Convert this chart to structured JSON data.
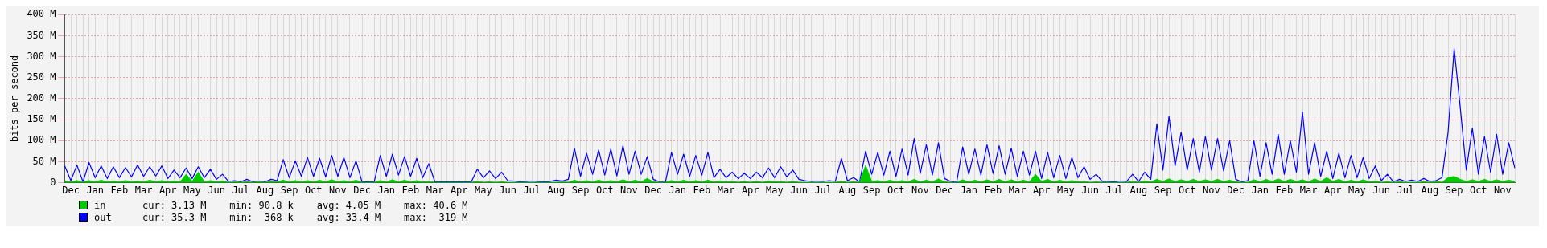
{
  "chart_data": {
    "type": "line",
    "ylabel": "bits per second",
    "categories": [
      null,
      "Dec",
      null,
      null,
      null,
      "Jan",
      null,
      null,
      null,
      "Feb",
      null,
      null,
      null,
      "Mar",
      null,
      null,
      null,
      "Apr",
      null,
      null,
      null,
      "May",
      null,
      null,
      null,
      "Jun",
      null,
      null,
      null,
      "Jul",
      null,
      null,
      null,
      "Aug",
      null,
      null,
      null,
      "Sep",
      null,
      null,
      null,
      "Oct",
      null,
      null,
      null,
      "Nov",
      null,
      null,
      null,
      "Dec",
      null,
      null,
      null,
      "Jan",
      null,
      null,
      null,
      "Feb",
      null,
      null,
      null,
      "Mar",
      null,
      null,
      null,
      "Apr",
      null,
      null,
      null,
      "May",
      null,
      null,
      null,
      "Jun",
      null,
      null,
      null,
      "Jul",
      null,
      null,
      null,
      "Aug",
      null,
      null,
      null,
      "Sep",
      null,
      null,
      null,
      "Oct",
      null,
      null,
      null,
      "Nov",
      null,
      null,
      null,
      "Dec",
      null,
      null,
      null,
      "Jan",
      null,
      null,
      null,
      "Feb",
      null,
      null,
      null,
      "Mar",
      null,
      null,
      null,
      "Apr",
      null,
      null,
      null,
      "May",
      null,
      null,
      null,
      "Jun",
      null,
      null,
      null,
      "Jul",
      null,
      null,
      null,
      "Aug",
      null,
      null,
      null,
      "Sep",
      null,
      null,
      null,
      "Oct",
      null,
      null,
      null,
      "Nov",
      null,
      null,
      null,
      "Dec",
      null,
      null,
      null,
      "Jan",
      null,
      null,
      null,
      "Feb",
      null,
      null,
      null,
      "Mar",
      null,
      null,
      null,
      "Apr",
      null,
      null,
      null,
      "May",
      null,
      null,
      null,
      "Jun",
      null,
      null,
      null,
      "Jul",
      null,
      null,
      null,
      "Aug",
      null,
      null,
      null,
      "Sep",
      null,
      null,
      null,
      "Oct",
      null,
      null,
      null,
      "Nov",
      null,
      null,
      null,
      "Dec",
      null,
      null,
      null,
      "Jan",
      null,
      null,
      null,
      "Feb",
      null,
      null,
      null,
      "Mar",
      null,
      null,
      null,
      "Apr",
      null,
      null,
      null,
      "May",
      null,
      null,
      null,
      "Jun",
      null,
      null,
      null,
      "Jul",
      null,
      null,
      null,
      "Aug",
      null,
      null,
      null,
      "Sep",
      null,
      null,
      null,
      "Oct",
      null,
      null,
      null,
      "Nov",
      null,
      null
    ],
    "series": [
      {
        "name": "in",
        "type": "area",
        "color": "#00cc00",
        "values": [
          4,
          2,
          5,
          2,
          5,
          2,
          6,
          2,
          4,
          2,
          5,
          2,
          4,
          2,
          6,
          2,
          5,
          2,
          4,
          2,
          20,
          3,
          25,
          2,
          5,
          2,
          4,
          1,
          2,
          1,
          2,
          1,
          2,
          1,
          3,
          2,
          6,
          2,
          5,
          2,
          5,
          2,
          6,
          2,
          7,
          2,
          5,
          2,
          6,
          1,
          1,
          1,
          5,
          2,
          7,
          2,
          6,
          2,
          5,
          2,
          3,
          1,
          1,
          1,
          1,
          1,
          1,
          1,
          3,
          1,
          2,
          1,
          2,
          1,
          1,
          1,
          1,
          1,
          1,
          1,
          1,
          1,
          2,
          1,
          6,
          2,
          5,
          2,
          6,
          2,
          5,
          2,
          7,
          2,
          6,
          2,
          10,
          2,
          1,
          1,
          5,
          2,
          6,
          2,
          5,
          2,
          6,
          2,
          4,
          2,
          3,
          1,
          3,
          1,
          3,
          1,
          4,
          2,
          3,
          1,
          3,
          1,
          1,
          1,
          1,
          1,
          1,
          1,
          3,
          1,
          2,
          1,
          41,
          3,
          5,
          2,
          6,
          2,
          5,
          2,
          8,
          2,
          6,
          2,
          9,
          2,
          1,
          1,
          7,
          2,
          6,
          2,
          7,
          2,
          8,
          2,
          7,
          2,
          6,
          2,
          20,
          3,
          8,
          2,
          6,
          2,
          5,
          2,
          3,
          1,
          2,
          1,
          1,
          1,
          1,
          1,
          3,
          1,
          4,
          2,
          8,
          3,
          9,
          3,
          7,
          3,
          8,
          3,
          7,
          3,
          8,
          3,
          6,
          2,
          1,
          1,
          7,
          2,
          8,
          3,
          9,
          3,
          8,
          3,
          7,
          2,
          9,
          3,
          12,
          3,
          8,
          2,
          6,
          2,
          7,
          2,
          4,
          1,
          2,
          1,
          2,
          1,
          1,
          1,
          2,
          1,
          3,
          1,
          12,
          15,
          8,
          3,
          7,
          3,
          8,
          3,
          7,
          3,
          6,
          3
        ]
      },
      {
        "name": "out",
        "type": "line",
        "color": "#0000ff",
        "values": [
          40,
          5,
          42,
          2,
          48,
          12,
          40,
          10,
          38,
          12,
          36,
          14,
          42,
          15,
          38,
          16,
          40,
          10,
          30,
          12,
          35,
          10,
          38,
          12,
          32,
          8,
          20,
          3,
          5,
          2,
          8,
          2,
          4,
          2,
          8,
          5,
          55,
          12,
          52,
          15,
          60,
          15,
          58,
          14,
          65,
          15,
          60,
          12,
          52,
          2,
          2,
          2,
          65,
          15,
          68,
          18,
          62,
          15,
          58,
          12,
          45,
          2,
          2,
          2,
          2,
          2,
          2,
          2,
          32,
          12,
          28,
          10,
          25,
          5,
          4,
          2,
          3,
          4,
          3,
          2,
          3,
          6,
          4,
          8,
          82,
          15,
          70,
          20,
          78,
          18,
          80,
          16,
          88,
          20,
          75,
          20,
          62,
          8,
          2,
          1,
          72,
          20,
          68,
          15,
          65,
          18,
          72,
          12,
          32,
          12,
          25,
          10,
          22,
          10,
          25,
          12,
          35,
          12,
          38,
          14,
          30,
          8,
          5,
          3,
          4,
          3,
          5,
          3,
          58,
          5,
          12,
          2,
          75,
          20,
          72,
          18,
          75,
          15,
          80,
          18,
          105,
          22,
          90,
          18,
          95,
          10,
          3,
          1,
          85,
          20,
          80,
          18,
          90,
          22,
          88,
          20,
          82,
          15,
          75,
          18,
          75,
          10,
          72,
          12,
          65,
          10,
          60,
          12,
          38,
          8,
          20,
          3,
          3,
          2,
          4,
          3,
          20,
          3,
          25,
          8,
          140,
          30,
          158,
          40,
          120,
          30,
          105,
          25,
          110,
          30,
          105,
          28,
          100,
          8,
          2,
          5,
          100,
          15,
          95,
          20,
          115,
          20,
          100,
          25,
          168,
          20,
          95,
          15,
          75,
          10,
          70,
          12,
          65,
          12,
          60,
          10,
          40,
          5,
          20,
          2,
          8,
          3,
          6,
          3,
          10,
          3,
          5,
          12,
          120,
          319,
          180,
          30,
          130,
          20,
          110,
          25,
          115,
          20,
          95,
          35
        ]
      }
    ],
    "ylim": [
      0,
      400
    ],
    "yticks": [
      0,
      {
        "value": 50,
        "label": "50 M"
      },
      {
        "value": 100,
        "label": "100 M"
      },
      {
        "value": 150,
        "label": "150 M"
      },
      {
        "value": 200,
        "label": "200 M"
      },
      {
        "value": 250,
        "label": "250 M"
      },
      {
        "value": 300,
        "label": "300 M"
      },
      {
        "value": 350,
        "label": "350 M"
      },
      {
        "value": 400,
        "label": "400 M"
      }
    ],
    "grid": true,
    "legend": "bottom",
    "marker": "none",
    "line_style": "solid",
    "annotations": [
      "cur: 3.13 M    min: 90.8 k    avg: 4.05 M    max: 40.6 M",
      "cur: 35.3 M    min:  368 k    avg: 33.4 M    max:  319 M"
    ]
  }
}
